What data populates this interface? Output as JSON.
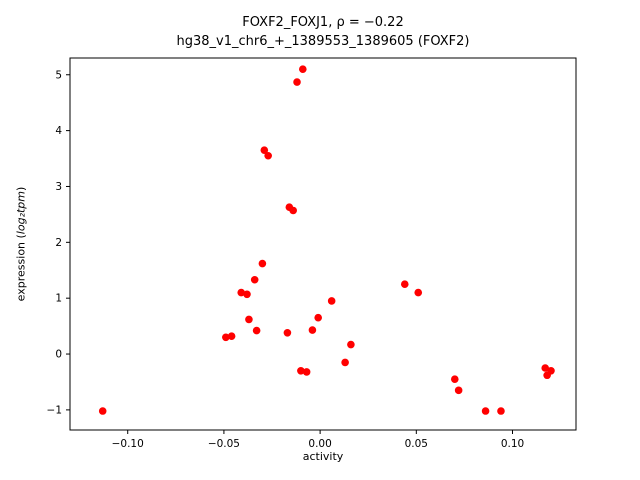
{
  "chart_data": {
    "type": "scatter",
    "title_line1": "FOXF2_FOXJ1, ρ = −0.22",
    "title_line2": "hg38_v1_chr6_+_1389553_1389605 (FOXF2)",
    "xlabel": "activity",
    "ylabel_prefix": "expression (",
    "ylabel_math": "log₂tpm",
    "ylabel_suffix": ")",
    "marker_color": "#ff0000",
    "marker_radius": 3.8,
    "xlim": [
      -0.13,
      0.133
    ],
    "ylim": [
      -1.36,
      5.3
    ],
    "xticks": [
      -0.1,
      -0.05,
      0.0,
      0.05,
      0.1
    ],
    "xtick_labels": [
      "−0.10",
      "−0.05",
      "0.00",
      "0.05",
      "0.10"
    ],
    "yticks": [
      -1,
      0,
      1,
      2,
      3,
      4,
      5
    ],
    "ytick_labels": [
      "−1",
      "0",
      "1",
      "2",
      "3",
      "4",
      "5"
    ],
    "grid": false,
    "legend": "none",
    "points": [
      [
        -0.113,
        -1.02
      ],
      [
        -0.049,
        0.3
      ],
      [
        -0.046,
        0.32
      ],
      [
        -0.041,
        1.1
      ],
      [
        -0.038,
        1.07
      ],
      [
        -0.037,
        0.62
      ],
      [
        -0.034,
        1.33
      ],
      [
        -0.033,
        0.42
      ],
      [
        -0.03,
        1.62
      ],
      [
        -0.029,
        3.65
      ],
      [
        -0.027,
        3.55
      ],
      [
        -0.017,
        0.38
      ],
      [
        -0.016,
        2.63
      ],
      [
        -0.014,
        2.57
      ],
      [
        -0.012,
        4.87
      ],
      [
        -0.01,
        -0.3
      ],
      [
        -0.009,
        5.1
      ],
      [
        -0.007,
        -0.32
      ],
      [
        -0.004,
        0.43
      ],
      [
        -0.001,
        0.65
      ],
      [
        0.006,
        0.95
      ],
      [
        0.013,
        -0.15
      ],
      [
        0.016,
        0.17
      ],
      [
        0.044,
        1.25
      ],
      [
        0.051,
        1.1
      ],
      [
        0.07,
        -0.45
      ],
      [
        0.072,
        -0.65
      ],
      [
        0.086,
        -1.02
      ],
      [
        0.094,
        -1.02
      ],
      [
        0.117,
        -0.25
      ],
      [
        0.118,
        -0.38
      ],
      [
        0.12,
        -0.3
      ]
    ]
  }
}
